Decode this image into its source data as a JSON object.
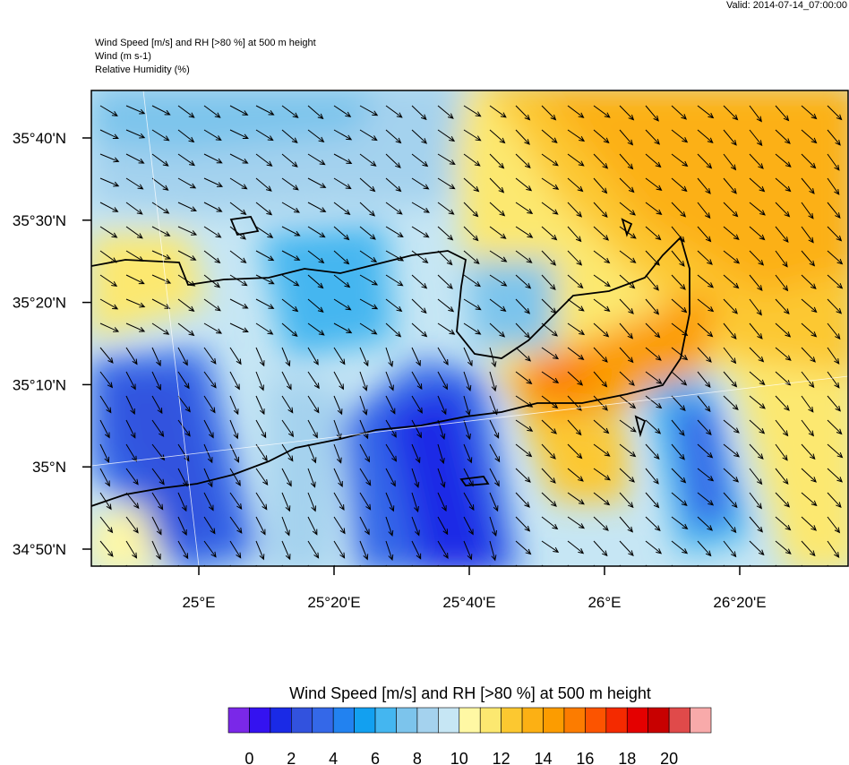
{
  "header": {
    "valid": "Valid: 2014-07-14_07:00:00",
    "lines": [
      "Wind Speed [m/s] and RH [>80 %] at 500 m height",
      "Wind   (m s-1)",
      "Relative Humidity    (%)"
    ]
  },
  "map": {
    "lat_labels": [
      "35°40'N",
      "35°30'N",
      "35°20'N",
      "35°10'N",
      "35°N",
      "34°50'N"
    ],
    "lon_labels": [
      "25°E",
      "25°20'E",
      "25°40'E",
      "26°E",
      "26°20'E"
    ]
  },
  "colorbar": {
    "title": "Wind Speed [m/s] and RH [>80 %] at 500 m height",
    "colors": [
      "#7a28e8",
      "#3412f0",
      "#1a2ae6",
      "#3252de",
      "#3468e8",
      "#2282f0",
      "#12a0f0",
      "#44b6f0",
      "#7cc4ec",
      "#a4d2ee",
      "#c6e6f4",
      "#fff8a4",
      "#fce870",
      "#fcc830",
      "#fcb014",
      "#fc9c00",
      "#fc7c00",
      "#fc5400",
      "#f42a00",
      "#e40000",
      "#c80000",
      "#e04a4a",
      "#f8aaaa"
    ],
    "ticks": [
      0,
      2,
      4,
      6,
      8,
      10,
      12,
      14,
      16,
      18,
      20
    ]
  }
}
